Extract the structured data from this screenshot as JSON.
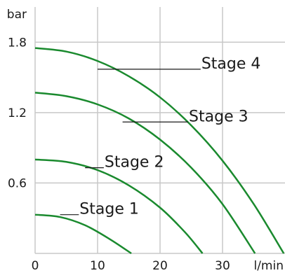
{
  "chart_data": {
    "type": "line",
    "xlabel": "l/min",
    "ylabel": "bar",
    "xlim": [
      0,
      40
    ],
    "ylim": [
      0,
      2.1
    ],
    "x_ticks": [
      "0",
      "10",
      "20",
      "30"
    ],
    "y_ticks": [
      "0.6",
      "1.2",
      "1.8"
    ],
    "grid": true,
    "series_color": "#1a8a2e",
    "series": [
      {
        "name": "Stage 1",
        "x": [
          0,
          4,
          8,
          12,
          15.4
        ],
        "y": [
          0.33,
          0.31,
          0.24,
          0.12,
          0.0
        ]
      },
      {
        "name": "Stage 2",
        "x": [
          0,
          5,
          10,
          15,
          20,
          24,
          26.8
        ],
        "y": [
          0.8,
          0.78,
          0.71,
          0.58,
          0.39,
          0.18,
          0.0
        ]
      },
      {
        "name": "Stage 3",
        "x": [
          0,
          5,
          10,
          15,
          20,
          25,
          30,
          35.2
        ],
        "y": [
          1.37,
          1.34,
          1.27,
          1.15,
          0.97,
          0.73,
          0.42,
          0.0
        ]
      },
      {
        "name": "Stage 4",
        "x": [
          0,
          5,
          10,
          15,
          20,
          25,
          30,
          35,
          39.8
        ],
        "y": [
          1.75,
          1.72,
          1.64,
          1.51,
          1.33,
          1.09,
          0.79,
          0.42,
          0.0
        ]
      }
    ],
    "annotations": [
      {
        "text": "Stage 1",
        "leader_from": [
          4,
          0.33
        ],
        "leader_to": [
          7,
          0.33
        ]
      },
      {
        "text": "Stage 2",
        "leader_from": [
          8,
          0.73
        ],
        "leader_to": [
          11,
          0.73
        ]
      },
      {
        "text": "Stage 3",
        "leader_from": [
          14,
          1.12
        ],
        "leader_to": [
          24.5,
          1.12
        ]
      },
      {
        "text": "Stage 4",
        "leader_from": [
          10,
          1.57
        ],
        "leader_to": [
          26.5,
          1.57
        ]
      }
    ]
  }
}
